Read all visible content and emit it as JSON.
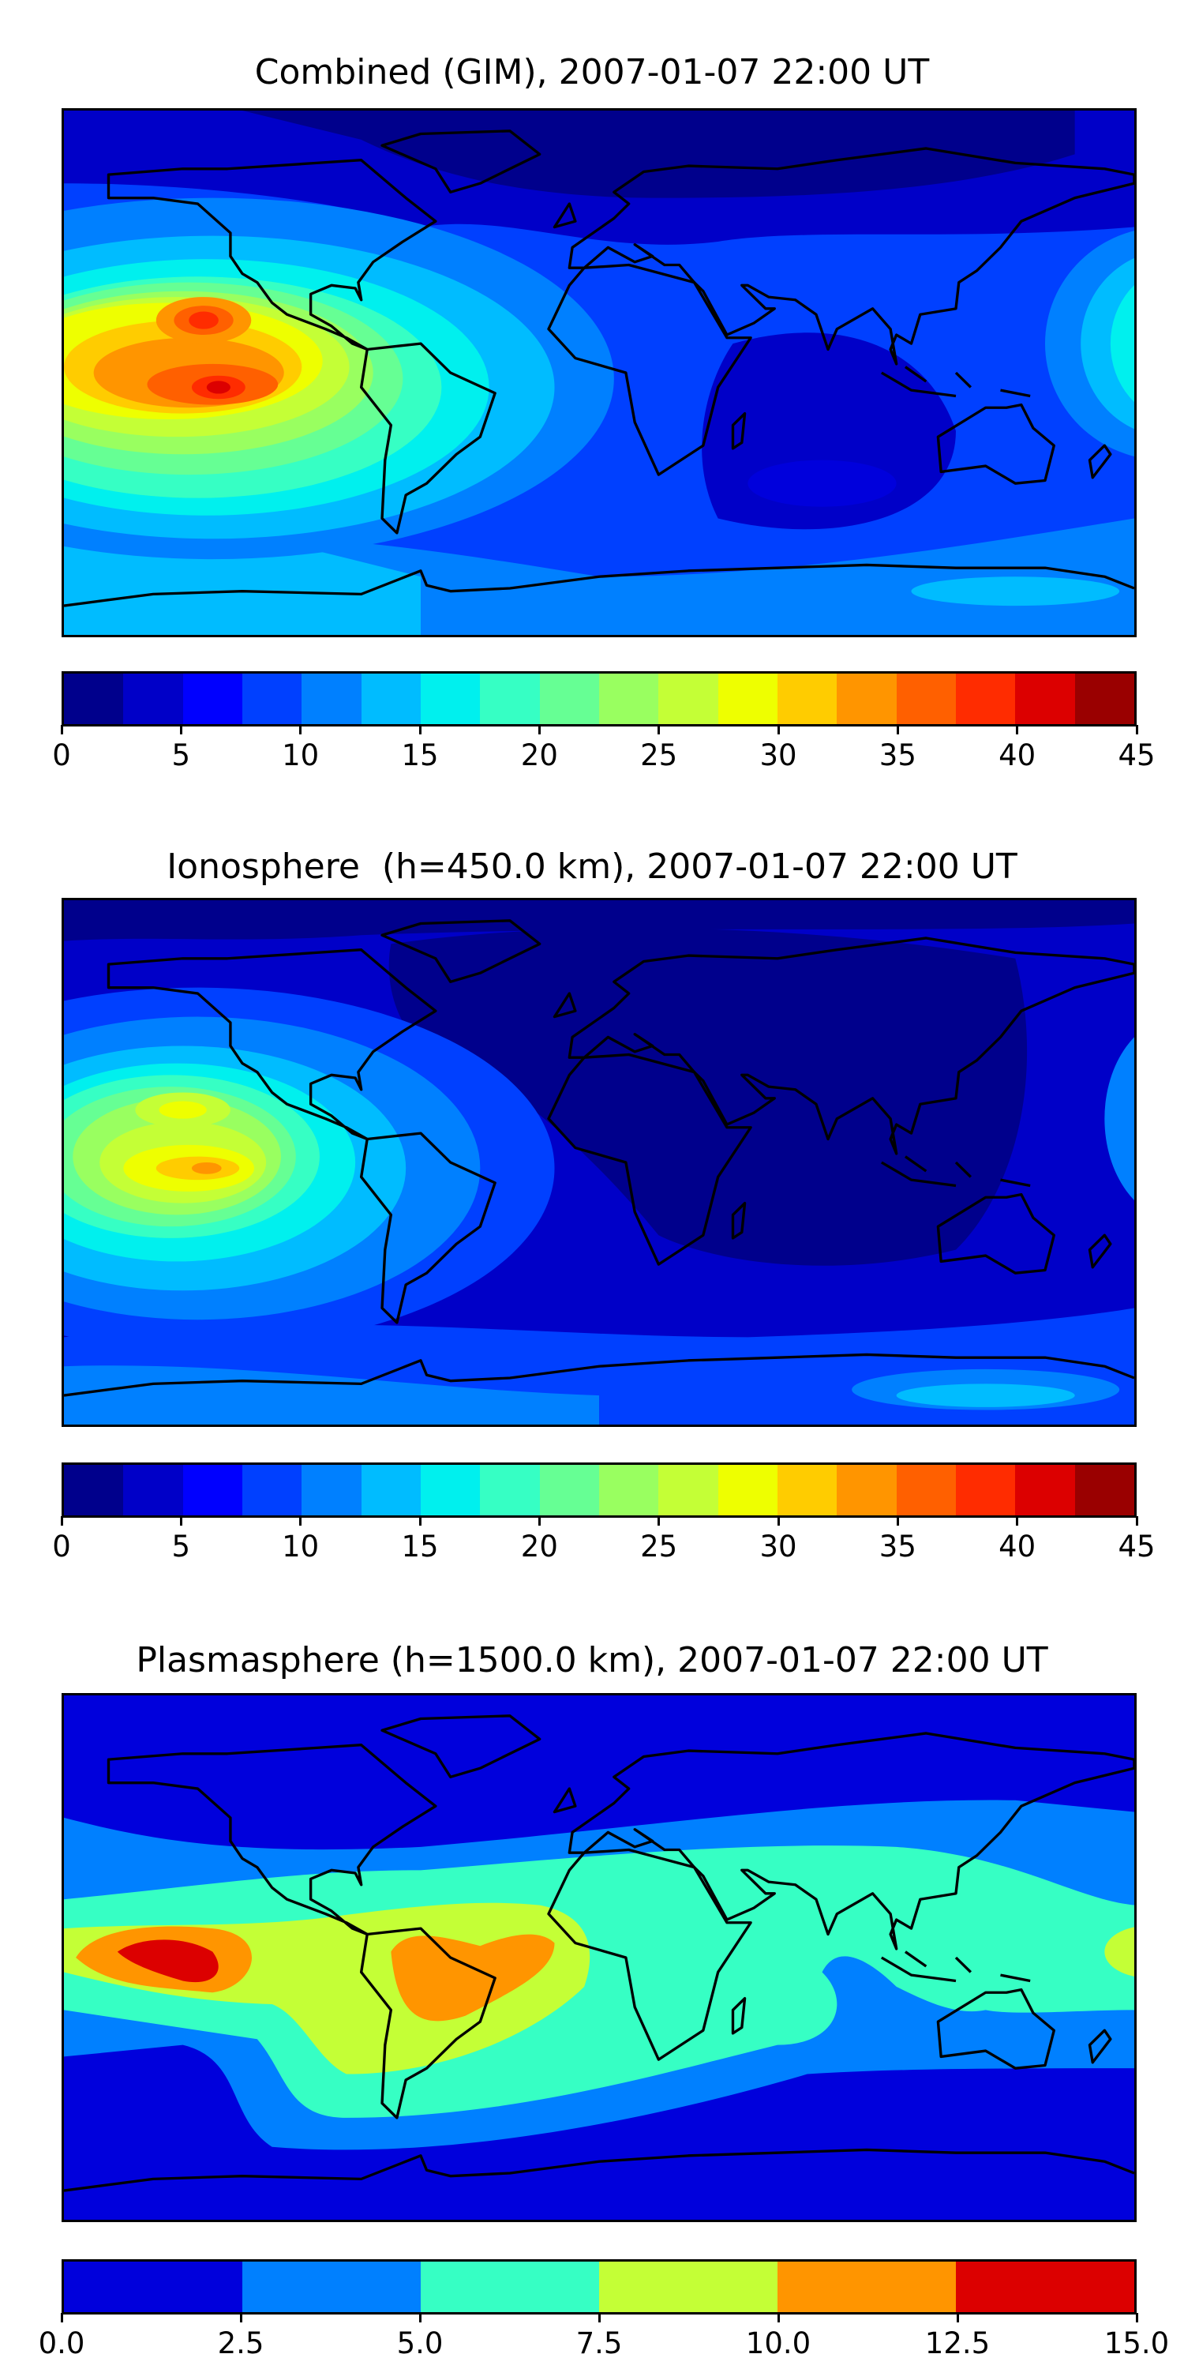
{
  "panels": [
    {
      "title": "Combined (GIM), 2007-01-07 22:00 UT",
      "colorbar": {
        "levels": [
          0,
          2.5,
          5,
          7.5,
          10,
          12.5,
          15,
          17.5,
          20,
          22.5,
          25,
          27.5,
          30,
          32.5,
          35,
          37.5,
          40,
          42.5,
          45
        ],
        "colors": [
          "#00008c",
          "#0000c8",
          "#0000ff",
          "#0040ff",
          "#0080ff",
          "#00bcff",
          "#00f0ee",
          "#36ffc4",
          "#66ff94",
          "#99ff60",
          "#c4ff36",
          "#eeff00",
          "#ffcc00",
          "#ff9500",
          "#ff6000",
          "#ff2c00",
          "#dc0000",
          "#9a0000"
        ],
        "tick_values": [
          0,
          5,
          10,
          15,
          20,
          25,
          30,
          35,
          40,
          45
        ],
        "tick_labels": [
          "0",
          "5",
          "10",
          "15",
          "20",
          "25",
          "30",
          "35",
          "40",
          "45"
        ]
      }
    },
    {
      "title": "Ionosphere  (h=450.0 km), 2007-01-07 22:00 UT",
      "colorbar": {
        "levels": [
          0,
          2.5,
          5,
          7.5,
          10,
          12.5,
          15,
          17.5,
          20,
          22.5,
          25,
          27.5,
          30,
          32.5,
          35,
          37.5,
          40,
          42.5,
          45
        ],
        "colors": [
          "#00008c",
          "#0000c8",
          "#0000ff",
          "#0040ff",
          "#0080ff",
          "#00bcff",
          "#00f0ee",
          "#36ffc4",
          "#66ff94",
          "#99ff60",
          "#c4ff36",
          "#eeff00",
          "#ffcc00",
          "#ff9500",
          "#ff6000",
          "#ff2c00",
          "#dc0000",
          "#9a0000"
        ],
        "tick_values": [
          0,
          5,
          10,
          15,
          20,
          25,
          30,
          35,
          40,
          45
        ],
        "tick_labels": [
          "0",
          "5",
          "10",
          "15",
          "20",
          "25",
          "30",
          "35",
          "40",
          "45"
        ]
      }
    },
    {
      "title": "Plasmasphere (h=1500.0 km), 2007-01-07 22:00 UT",
      "colorbar": {
        "levels": [
          0,
          2.5,
          5,
          7.5,
          10,
          12.5,
          15
        ],
        "colors": [
          "#0000dc",
          "#0080ff",
          "#36ffc4",
          "#c4ff36",
          "#ff9500",
          "#dc0000"
        ],
        "tick_values": [
          0,
          2.5,
          5,
          7.5,
          10,
          12.5,
          15
        ],
        "tick_labels": [
          "0.0",
          "2.5",
          "5.0",
          "7.5",
          "10.0",
          "12.5",
          "15.0"
        ]
      }
    }
  ]
}
